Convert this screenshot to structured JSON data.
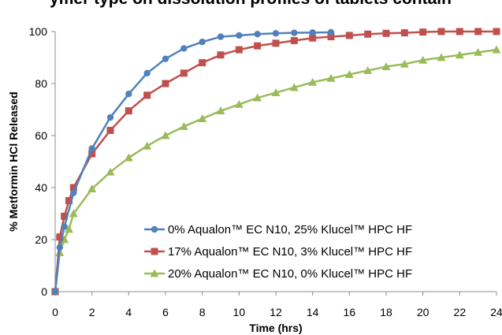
{
  "chart_data": {
    "type": "line",
    "title": "ymer type on dissolution profiles of tablets contain",
    "xlabel": "Time (hrs)",
    "ylabel": "% Metformin HCl Released",
    "xlim": [
      0,
      24
    ],
    "ylim": [
      0,
      100
    ],
    "xticks": [
      0,
      2,
      4,
      6,
      8,
      10,
      12,
      14,
      16,
      18,
      20,
      22,
      24
    ],
    "yticks": [
      0,
      20,
      40,
      60,
      80,
      100
    ],
    "grid": false,
    "legend_position": "bottom-right",
    "series": [
      {
        "name": "0% Aqualon™ EC N10, 25% Klucel™ HPC HF",
        "color": "#4f81bd",
        "marker": "circle",
        "x": [
          0,
          0.25,
          0.5,
          1,
          2,
          3,
          4,
          5,
          6,
          7,
          8,
          9,
          10,
          11,
          12,
          13,
          14,
          15
        ],
        "y": [
          0,
          17,
          25,
          38,
          55,
          67,
          76,
          84,
          89.5,
          93.5,
          96,
          98,
          98.5,
          99,
          99.3,
          99.5,
          99.6,
          99.7
        ]
      },
      {
        "name": "17% Aqualon™ EC N10, 3% Klucel™ HPC HF",
        "color": "#c0504d",
        "marker": "square",
        "x": [
          0,
          0.25,
          0.5,
          0.75,
          1,
          2,
          3,
          4,
          5,
          6,
          7,
          8,
          9,
          10,
          11,
          12,
          13,
          14,
          15,
          16,
          17,
          18,
          19,
          20,
          21,
          22,
          23,
          24
        ],
        "y": [
          0,
          21,
          29,
          35,
          40,
          53,
          62,
          69.5,
          75.5,
          80,
          84,
          88,
          91,
          93,
          94.5,
          95.5,
          96.5,
          97.5,
          98,
          98.5,
          99,
          99.3,
          99.5,
          99.8,
          100,
          100,
          100,
          100
        ]
      },
      {
        "name": "20% Aqualon™ EC N10, 0% Klucel™ HPC HF",
        "color": "#9bbb59",
        "marker": "triangle",
        "x": [
          0,
          0.25,
          0.5,
          0.75,
          1,
          2,
          3,
          4,
          5,
          6,
          7,
          8,
          9,
          10,
          11,
          12,
          13,
          14,
          15,
          16,
          17,
          18,
          19,
          20,
          21,
          22,
          23,
          24
        ],
        "y": [
          0,
          15,
          20,
          24,
          30,
          39.5,
          46,
          51.5,
          56,
          60,
          63.5,
          66.5,
          69.5,
          72,
          74.5,
          76.5,
          78.5,
          80.5,
          82,
          83.5,
          85,
          86.5,
          87.5,
          89,
          90,
          91,
          92,
          93
        ]
      }
    ]
  }
}
